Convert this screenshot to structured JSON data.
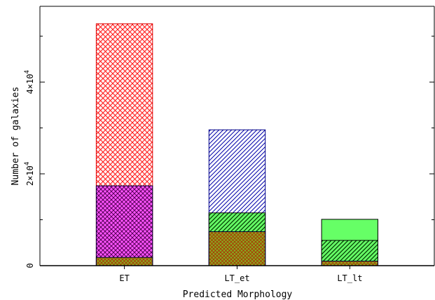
{
  "chart_data": {
    "type": "bar",
    "stacked": false,
    "layering": "overlapping bars drawn on top of each other",
    "xlabel": "Predicted Morphology",
    "ylabel": "Number of galaxies",
    "categories": [
      "ET",
      "LT_et",
      "LT_lt"
    ],
    "ylim": [
      0,
      56500
    ],
    "y_tick_values": [
      0,
      20000,
      40000
    ],
    "y_tick_labels": [
      {
        "base": "0",
        "exp": ""
      },
      {
        "base": "2×10",
        "exp": "4"
      },
      {
        "base": "4×10",
        "exp": "4"
      }
    ],
    "minor_tick_step": 10000,
    "grid": false,
    "legend": "none",
    "series": [
      {
        "color": "#ff0000",
        "pattern": "crosshatch",
        "values": [
          52700,
          0,
          0
        ]
      },
      {
        "color": "#0000aa",
        "pattern": "diagonal",
        "values": [
          0,
          29600,
          0
        ]
      },
      {
        "color": "#00ff00",
        "pattern": "solid",
        "values": [
          0,
          0,
          10100
        ]
      },
      {
        "color": "#990099",
        "pattern": "crosshatch",
        "values": [
          17400,
          0,
          0
        ]
      },
      {
        "color": "#00cc00",
        "pattern": "diagonal",
        "values": [
          0,
          11500,
          5500
        ]
      },
      {
        "color": "#669900",
        "pattern": "crosshatch",
        "values": [
          1800,
          7400,
          1000
        ]
      }
    ]
  }
}
